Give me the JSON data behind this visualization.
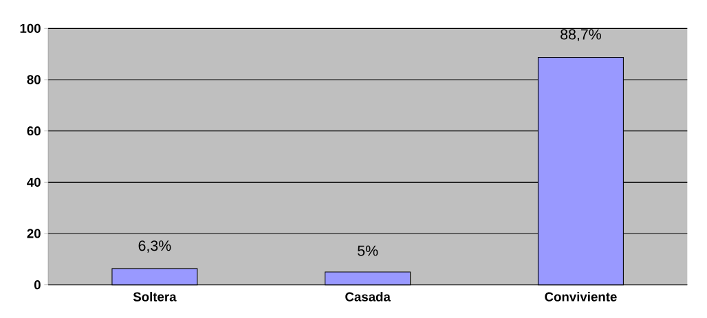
{
  "chart_data": {
    "type": "bar",
    "categories": [
      "Soltera",
      "Casada",
      "Conviviente"
    ],
    "values": [
      6.3,
      5,
      88.7
    ],
    "value_labels": [
      "6,3%",
      "5%",
      "88,7%"
    ],
    "color": "#9999ff",
    "ylim": [
      0,
      100
    ],
    "yticks": [
      0,
      20,
      40,
      60,
      80,
      100
    ],
    "grid": "y"
  }
}
